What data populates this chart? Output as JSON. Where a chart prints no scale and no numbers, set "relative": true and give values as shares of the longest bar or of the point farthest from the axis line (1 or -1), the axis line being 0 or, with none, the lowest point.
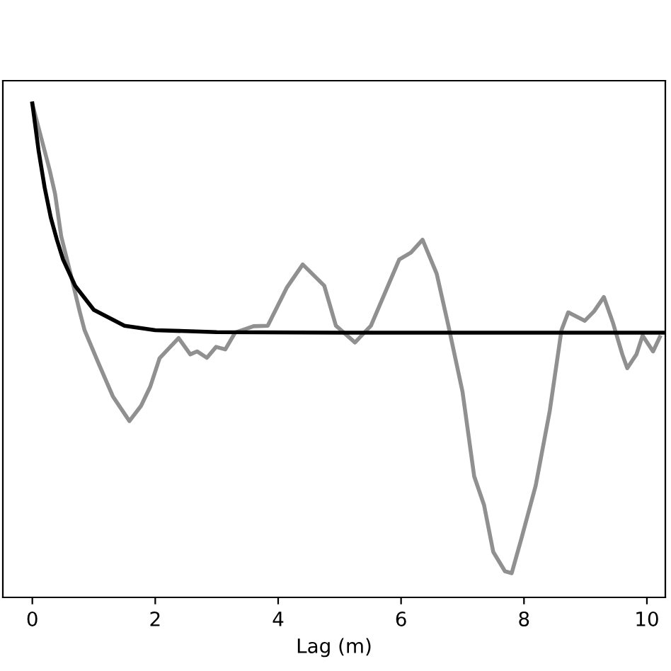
{
  "chart_data": {
    "type": "line",
    "relative": true,
    "xlabel": "Lag (m)",
    "xlim": [
      -0.48,
      10.3
    ],
    "xticks": [
      0,
      2,
      4,
      6,
      8,
      10
    ],
    "tick_labels": "x",
    "grid": false,
    "legend": false,
    "marker": "none",
    "line_style": "solid",
    "series": [
      {
        "color": "#909090",
        "x": [
          0,
          0.16,
          0.28,
          0.37,
          0.47,
          0.62,
          0.77,
          0.85,
          1.08,
          1.31,
          1.58,
          1.77,
          1.92,
          2.07,
          2.38,
          2.57,
          2.68,
          2.84,
          2.99,
          3.14,
          3.3,
          3.6,
          3.83,
          4.14,
          4.4,
          4.75,
          4.94,
          5.25,
          5.51,
          5.97,
          6.16,
          6.35,
          6.58,
          6.77,
          7.0,
          7.19,
          7.35,
          7.5,
          7.69,
          7.8,
          7.96,
          8.19,
          8.42,
          8.61,
          8.72,
          8.99,
          9.14,
          9.3,
          9.45,
          9.6,
          9.68,
          9.83,
          9.93,
          10.1,
          10.21
        ],
        "values": [
          0.999,
          0.923,
          0.866,
          0.817,
          0.731,
          0.656,
          0.579,
          0.541,
          0.473,
          0.407,
          0.357,
          0.388,
          0.427,
          0.484,
          0.525,
          0.492,
          0.498,
          0.485,
          0.507,
          0.502,
          0.536,
          0.549,
          0.55,
          0.627,
          0.674,
          0.631,
          0.55,
          0.516,
          0.55,
          0.684,
          0.698,
          0.724,
          0.655,
          0.55,
          0.416,
          0.245,
          0.187,
          0.092,
          0.053,
          0.049,
          0.12,
          0.226,
          0.378,
          0.541,
          0.577,
          0.56,
          0.579,
          0.608,
          0.555,
          0.492,
          0.464,
          0.492,
          0.53,
          0.498,
          0.527
        ]
      },
      {
        "color": "#000000",
        "x": [
          0,
          0.1,
          0.2,
          0.3,
          0.4,
          0.5,
          0.7,
          1.0,
          1.5,
          2,
          3,
          5,
          10.3
        ],
        "values": [
          1.0,
          0.906,
          0.83,
          0.769,
          0.724,
          0.684,
          0.63,
          0.582,
          0.55,
          0.541,
          0.537,
          0.536,
          0.536
        ]
      }
    ]
  }
}
